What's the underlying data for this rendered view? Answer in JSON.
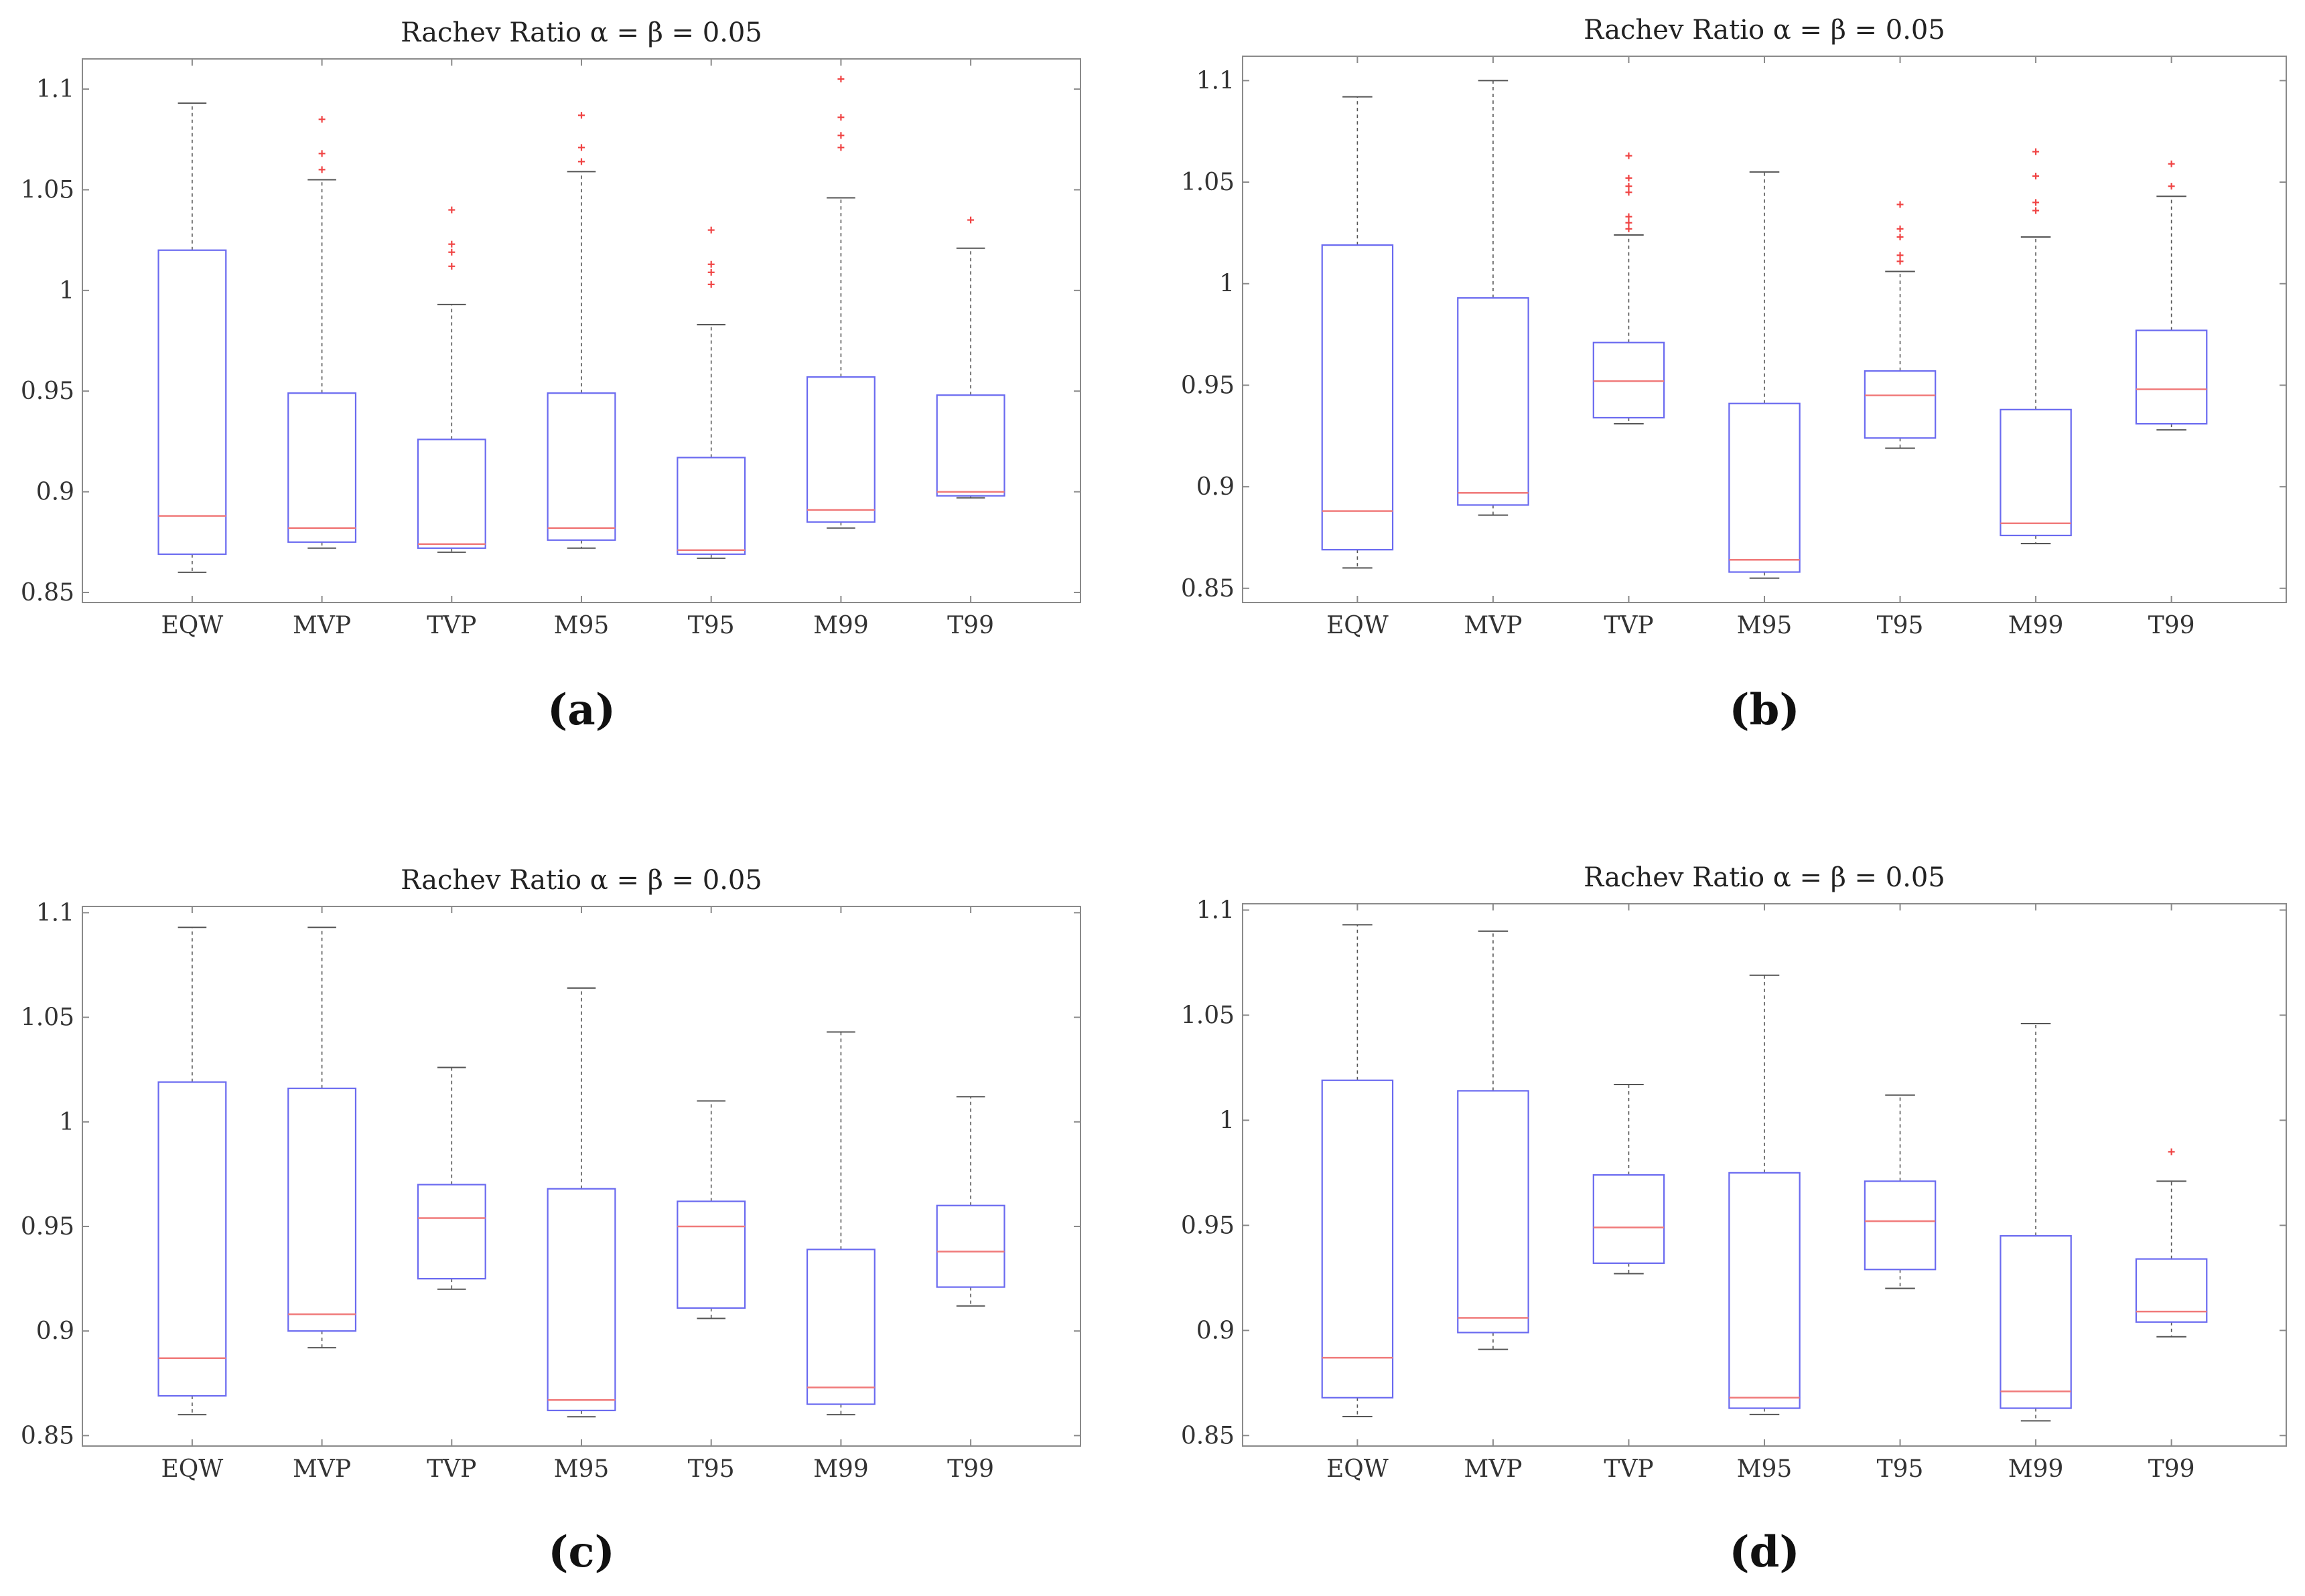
{
  "chart_data": [
    {
      "type": "box",
      "panel": "(a)",
      "title": "Rachev Ratio α = β = 0.05",
      "categories": [
        "EQW",
        "MVP",
        "TVP",
        "M95",
        "T95",
        "M99",
        "T99"
      ],
      "ylim": [
        0.845,
        1.115
      ],
      "yticks": [
        0.85,
        0.9,
        0.95,
        1,
        1.05,
        1.1
      ],
      "ytick_labels": [
        "0.85",
        "0.9",
        "0.95",
        "1",
        "1.05",
        "1.1"
      ],
      "boxes": [
        {
          "category": "EQW",
          "whislo": 0.86,
          "q1": 0.869,
          "med": 0.888,
          "q3": 1.02,
          "whishi": 1.093,
          "fliers": []
        },
        {
          "category": "MVP",
          "whislo": 0.872,
          "q1": 0.875,
          "med": 0.882,
          "q3": 0.949,
          "whishi": 1.055,
          "fliers": [
            1.06,
            1.068,
            1.085
          ]
        },
        {
          "category": "TVP",
          "whislo": 0.87,
          "q1": 0.872,
          "med": 0.874,
          "q3": 0.926,
          "whishi": 0.993,
          "fliers": [
            1.012,
            1.019,
            1.023,
            1.04
          ]
        },
        {
          "category": "M95",
          "whislo": 0.872,
          "q1": 0.876,
          "med": 0.882,
          "q3": 0.949,
          "whishi": 1.059,
          "fliers": [
            1.064,
            1.071,
            1.087
          ]
        },
        {
          "category": "T95",
          "whislo": 0.867,
          "q1": 0.869,
          "med": 0.871,
          "q3": 0.917,
          "whishi": 0.983,
          "fliers": [
            1.003,
            1.009,
            1.013,
            1.03
          ]
        },
        {
          "category": "M99",
          "whislo": 0.882,
          "q1": 0.885,
          "med": 0.891,
          "q3": 0.957,
          "whishi": 1.046,
          "fliers": [
            1.071,
            1.077,
            1.086,
            1.105
          ]
        },
        {
          "category": "T99",
          "whislo": 0.897,
          "q1": 0.898,
          "med": 0.9,
          "q3": 0.948,
          "whishi": 1.021,
          "fliers": [
            1.035
          ]
        }
      ]
    },
    {
      "type": "box",
      "panel": "(b)",
      "title": "Rachev Ratio α = β = 0.05",
      "categories": [
        "EQW",
        "MVP",
        "TVP",
        "M95",
        "T95",
        "M99",
        "T99"
      ],
      "ylim": [
        0.843,
        1.112
      ],
      "yticks": [
        0.85,
        0.9,
        0.95,
        1,
        1.05,
        1.1
      ],
      "ytick_labels": [
        "0.85",
        "0.9",
        "0.95",
        "1",
        "1.05",
        "1.1"
      ],
      "boxes": [
        {
          "category": "EQW",
          "whislo": 0.86,
          "q1": 0.869,
          "med": 0.888,
          "q3": 1.019,
          "whishi": 1.092,
          "fliers": []
        },
        {
          "category": "MVP",
          "whislo": 0.886,
          "q1": 0.891,
          "med": 0.897,
          "q3": 0.993,
          "whishi": 1.1,
          "fliers": []
        },
        {
          "category": "TVP",
          "whislo": 0.931,
          "q1": 0.934,
          "med": 0.952,
          "q3": 0.971,
          "whishi": 1.024,
          "fliers": [
            1.027,
            1.03,
            1.033,
            1.045,
            1.048,
            1.052,
            1.063
          ]
        },
        {
          "category": "M95",
          "whislo": 0.855,
          "q1": 0.858,
          "med": 0.864,
          "q3": 0.941,
          "whishi": 1.055,
          "fliers": []
        },
        {
          "category": "T95",
          "whislo": 0.919,
          "q1": 0.924,
          "med": 0.945,
          "q3": 0.957,
          "whishi": 1.006,
          "fliers": [
            1.011,
            1.014,
            1.023,
            1.027,
            1.039
          ]
        },
        {
          "category": "M99",
          "whislo": 0.872,
          "q1": 0.876,
          "med": 0.882,
          "q3": 0.938,
          "whishi": 1.023,
          "fliers": [
            1.036,
            1.04,
            1.053,
            1.065
          ]
        },
        {
          "category": "T99",
          "whislo": 0.928,
          "q1": 0.931,
          "med": 0.948,
          "q3": 0.977,
          "whishi": 1.043,
          "fliers": [
            1.048,
            1.059
          ]
        }
      ]
    },
    {
      "type": "box",
      "panel": "(c)",
      "title": "Rachev Ratio α = β = 0.05",
      "categories": [
        "EQW",
        "MVP",
        "TVP",
        "M95",
        "T95",
        "M99",
        "T99"
      ],
      "ylim": [
        0.845,
        1.103
      ],
      "yticks": [
        0.85,
        0.9,
        0.95,
        1,
        1.05,
        1.1
      ],
      "ytick_labels": [
        "0.85",
        "0.9",
        "0.95",
        "1",
        "1.05",
        "1.1"
      ],
      "boxes": [
        {
          "category": "EQW",
          "whislo": 0.86,
          "q1": 0.869,
          "med": 0.887,
          "q3": 1.019,
          "whishi": 1.093,
          "fliers": []
        },
        {
          "category": "MVP",
          "whislo": 0.892,
          "q1": 0.9,
          "med": 0.908,
          "q3": 1.016,
          "whishi": 1.093,
          "fliers": []
        },
        {
          "category": "TVP",
          "whislo": 0.92,
          "q1": 0.925,
          "med": 0.954,
          "q3": 0.97,
          "whishi": 1.026,
          "fliers": []
        },
        {
          "category": "M95",
          "whislo": 0.859,
          "q1": 0.862,
          "med": 0.867,
          "q3": 0.968,
          "whishi": 1.064,
          "fliers": []
        },
        {
          "category": "T95",
          "whislo": 0.906,
          "q1": 0.911,
          "med": 0.95,
          "q3": 0.962,
          "whishi": 1.01,
          "fliers": []
        },
        {
          "category": "M99",
          "whislo": 0.86,
          "q1": 0.865,
          "med": 0.873,
          "q3": 0.939,
          "whishi": 1.043,
          "fliers": []
        },
        {
          "category": "T99",
          "whislo": 0.912,
          "q1": 0.921,
          "med": 0.938,
          "q3": 0.96,
          "whishi": 1.012,
          "fliers": []
        }
      ]
    },
    {
      "type": "box",
      "panel": "(d)",
      "title": "Rachev Ratio α = β = 0.05",
      "categories": [
        "EQW",
        "MVP",
        "TVP",
        "M95",
        "T95",
        "M99",
        "T99"
      ],
      "ylim": [
        0.845,
        1.103
      ],
      "yticks": [
        0.85,
        0.9,
        0.95,
        1,
        1.05,
        1.1
      ],
      "ytick_labels": [
        "0.85",
        "0.9",
        "0.95",
        "1",
        "1.05",
        "1.1"
      ],
      "boxes": [
        {
          "category": "EQW",
          "whislo": 0.859,
          "q1": 0.868,
          "med": 0.887,
          "q3": 1.019,
          "whishi": 1.093,
          "fliers": []
        },
        {
          "category": "MVP",
          "whislo": 0.891,
          "q1": 0.899,
          "med": 0.906,
          "q3": 1.014,
          "whishi": 1.09,
          "fliers": []
        },
        {
          "category": "TVP",
          "whislo": 0.927,
          "q1": 0.932,
          "med": 0.949,
          "q3": 0.974,
          "whishi": 1.017,
          "fliers": []
        },
        {
          "category": "M95",
          "whislo": 0.86,
          "q1": 0.863,
          "med": 0.868,
          "q3": 0.975,
          "whishi": 1.069,
          "fliers": []
        },
        {
          "category": "T95",
          "whislo": 0.92,
          "q1": 0.929,
          "med": 0.952,
          "q3": 0.971,
          "whishi": 1.012,
          "fliers": []
        },
        {
          "category": "M99",
          "whislo": 0.857,
          "q1": 0.863,
          "med": 0.871,
          "q3": 0.945,
          "whishi": 1.046,
          "fliers": []
        },
        {
          "category": "T99",
          "whislo": 0.897,
          "q1": 0.904,
          "med": 0.909,
          "q3": 0.934,
          "whishi": 0.971,
          "fliers": [
            0.985
          ]
        }
      ]
    }
  ]
}
